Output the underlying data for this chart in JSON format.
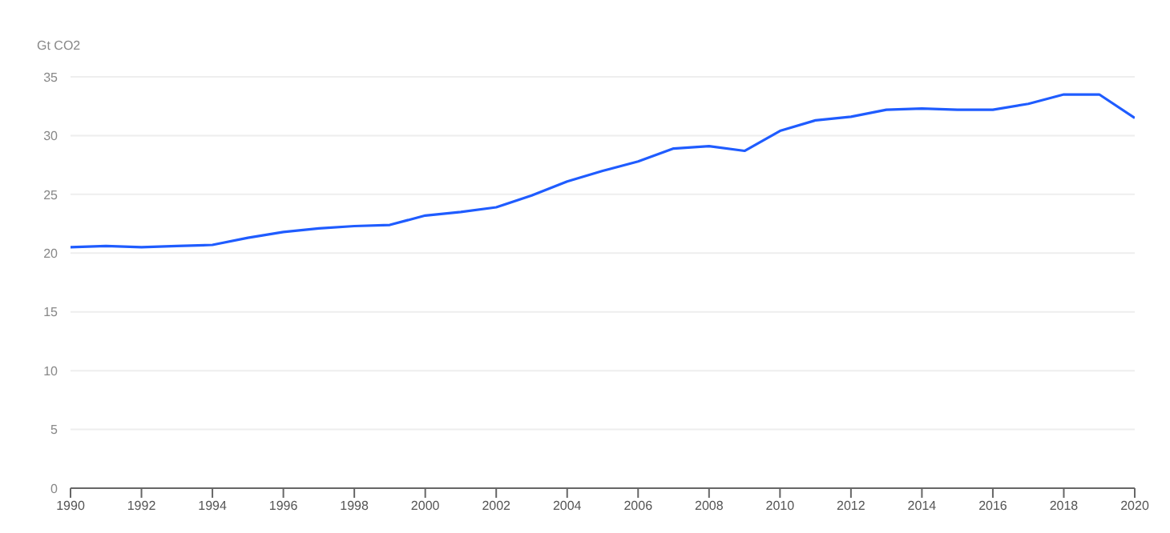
{
  "chart_data": {
    "type": "line",
    "ylabel": "Gt CO2",
    "x": [
      1990,
      1991,
      1992,
      1993,
      1994,
      1995,
      1996,
      1997,
      1998,
      1999,
      2000,
      2001,
      2002,
      2003,
      2004,
      2005,
      2006,
      2007,
      2008,
      2009,
      2010,
      2011,
      2012,
      2013,
      2014,
      2015,
      2016,
      2017,
      2018,
      2019,
      2020
    ],
    "series": [
      {
        "color": "#1f5cff",
        "values": [
          20.5,
          20.6,
          20.5,
          20.6,
          20.7,
          21.3,
          21.8,
          22.1,
          22.3,
          22.4,
          23.2,
          23.5,
          23.9,
          24.9,
          26.1,
          27.0,
          27.8,
          28.9,
          29.1,
          28.7,
          30.4,
          31.3,
          31.6,
          32.2,
          32.3,
          32.2,
          32.2,
          32.7,
          33.5,
          33.5,
          31.5
        ]
      }
    ],
    "xlim": [
      1990,
      2020
    ],
    "xticks": [
      1990,
      1992,
      1994,
      1996,
      1998,
      2000,
      2002,
      2004,
      2006,
      2008,
      2010,
      2012,
      2014,
      2016,
      2018,
      2020
    ],
    "ylim": [
      0,
      35
    ],
    "yticks": [
      0,
      5,
      10,
      15,
      20,
      25,
      30,
      35
    ],
    "grid": "y",
    "legend": false,
    "marker": "none",
    "line_style": "solid"
  }
}
